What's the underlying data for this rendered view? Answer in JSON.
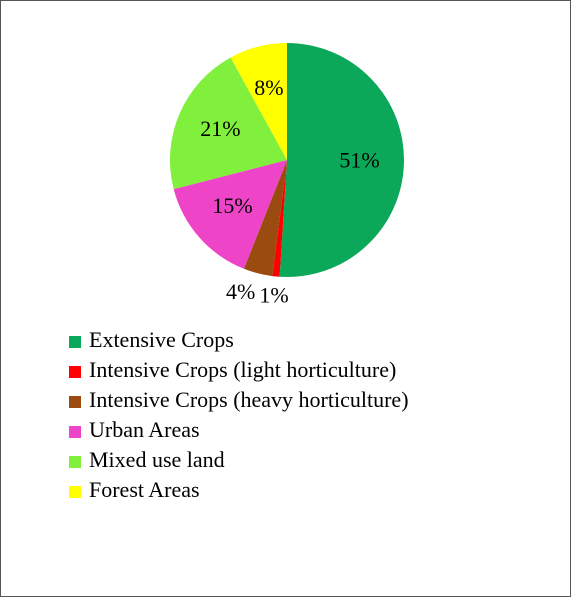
{
  "chart_data": {
    "type": "pie",
    "categories": [
      "Extensive Crops",
      "Intensive Crops (light horticulture)",
      "Intensive Crops (heavy horticulture)",
      "Urban Areas",
      "Mixed use land",
      "Forest Areas"
    ],
    "values": [
      51,
      1,
      4,
      15,
      21,
      8
    ],
    "value_labels": [
      "51%",
      "1%",
      "4%",
      "15%",
      "21%",
      "8%"
    ],
    "colors": [
      "#0ba85a",
      "#ff0000",
      "#9b4a10",
      "#ee45c8",
      "#80f03c",
      "#ffff00"
    ]
  }
}
